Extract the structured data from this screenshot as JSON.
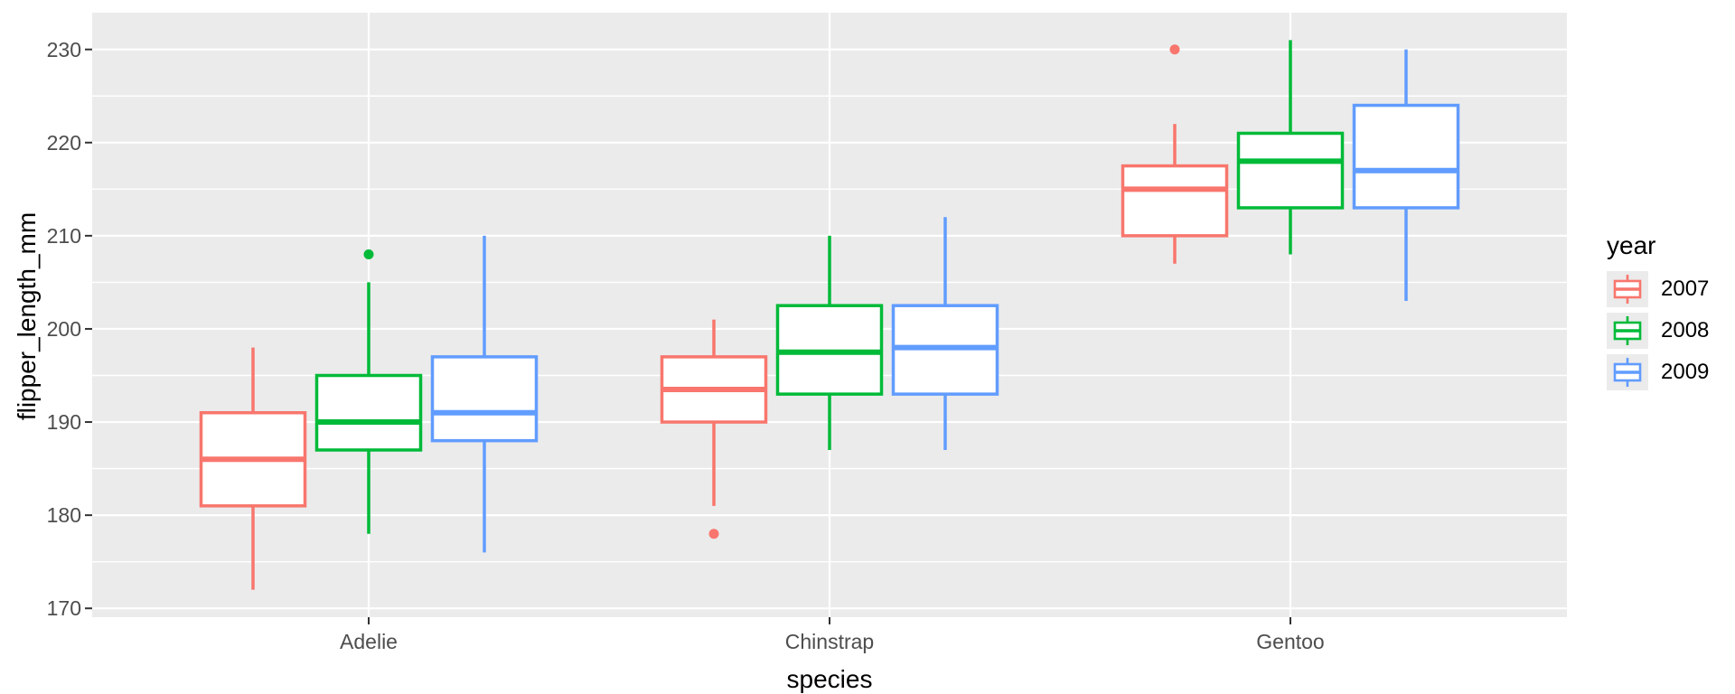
{
  "figure": {
    "title": "",
    "xlabel": "species",
    "ylabel": "flipper_length_mm"
  },
  "chart_data": {
    "type": "boxplot",
    "title": "",
    "xlabel": "species",
    "ylabel": "flipper_length_mm",
    "categories": [
      "Adelie",
      "Chinstrap",
      "Gentoo"
    ],
    "legend": {
      "title": "year",
      "position": "right",
      "entries": [
        "2007",
        "2008",
        "2009"
      ]
    },
    "series": [
      {
        "name": "2007",
        "color": "#F8766D",
        "stats": [
          {
            "category": "Adelie",
            "whisker_low": 172,
            "q1": 181,
            "median": 186,
            "q3": 191,
            "whisker_high": 198,
            "outliers": []
          },
          {
            "category": "Chinstrap",
            "whisker_low": 181,
            "q1": 190,
            "median": 193.5,
            "q3": 197,
            "whisker_high": 201,
            "outliers": [
              178
            ]
          },
          {
            "category": "Gentoo",
            "whisker_low": 207,
            "q1": 210,
            "median": 215,
            "q3": 217.5,
            "whisker_high": 222,
            "outliers": [
              230
            ]
          }
        ]
      },
      {
        "name": "2008",
        "color": "#00BA38",
        "stats": [
          {
            "category": "Adelie",
            "whisker_low": 178,
            "q1": 187,
            "median": 190,
            "q3": 195,
            "whisker_high": 205,
            "outliers": [
              208
            ]
          },
          {
            "category": "Chinstrap",
            "whisker_low": 187,
            "q1": 193,
            "median": 197.5,
            "q3": 202.5,
            "whisker_high": 210,
            "outliers": []
          },
          {
            "category": "Gentoo",
            "whisker_low": 208,
            "q1": 213,
            "median": 218,
            "q3": 221,
            "whisker_high": 231,
            "outliers": []
          }
        ]
      },
      {
        "name": "2009",
        "color": "#619CFF",
        "stats": [
          {
            "category": "Adelie",
            "whisker_low": 176,
            "q1": 188,
            "median": 191,
            "q3": 197,
            "whisker_high": 210,
            "outliers": []
          },
          {
            "category": "Chinstrap",
            "whisker_low": 187,
            "q1": 193,
            "median": 198,
            "q3": 202.5,
            "whisker_high": 212,
            "outliers": []
          },
          {
            "category": "Gentoo",
            "whisker_low": 203,
            "q1": 213,
            "median": 217,
            "q3": 224,
            "whisker_high": 230,
            "outliers": []
          }
        ]
      }
    ],
    "yticks": [
      170,
      180,
      190,
      200,
      210,
      220,
      230
    ],
    "yticks_minor": [
      175,
      185,
      195,
      205,
      215,
      225
    ],
    "ylim": [
      169.05,
      233.95
    ],
    "grid": true,
    "colors": {
      "panel_bg": "#EBEBEB",
      "grid": "#FFFFFF",
      "tick_mark": "#333333",
      "tick_label": "#4D4D4D",
      "axis_title": "#000000",
      "box_fill": "#FFFFFF"
    }
  }
}
